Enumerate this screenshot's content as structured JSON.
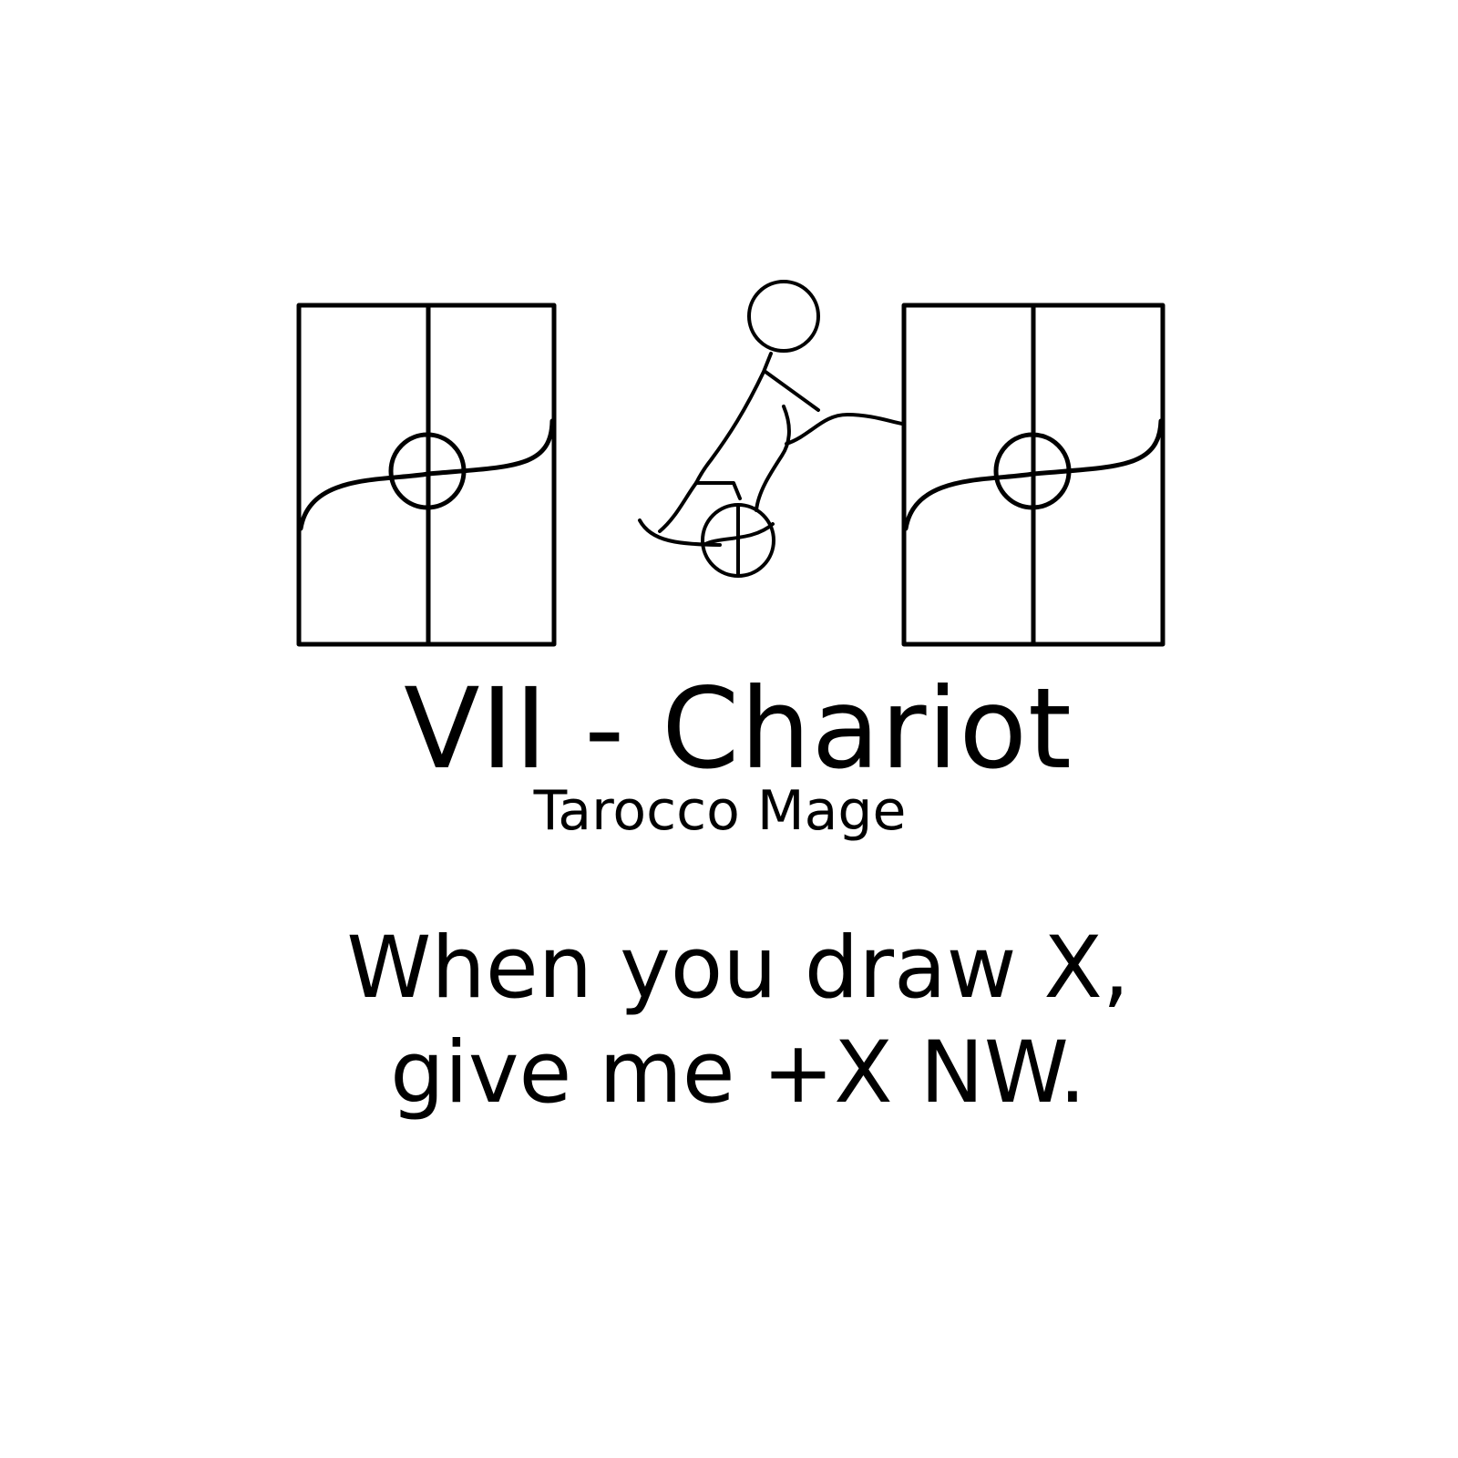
{
  "card": {
    "title": "VII - Chariot",
    "subtitle": "Tarocco Mage",
    "effect_lines": [
      "When you draw X,",
      "give me +X NW."
    ]
  },
  "illustration": {
    "subject": "stick-figure-chariot-between-two-paneled-doors",
    "ink_color": "#000000",
    "background_color": "#ffffff"
  }
}
